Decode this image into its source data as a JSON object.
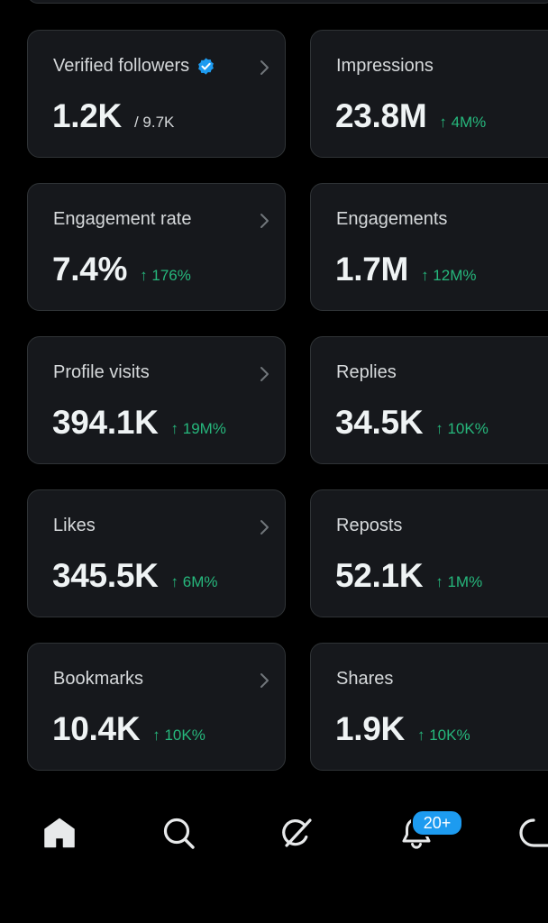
{
  "cards": [
    {
      "label": "Verified followers",
      "value": "1.2K",
      "total": "/ 9.7K",
      "delta": "",
      "verified": true,
      "chevron": true
    },
    {
      "label": "Impressions",
      "value": "23.8M",
      "delta": "↑ 4M%",
      "chevron": false
    },
    {
      "label": "Engagement rate",
      "value": "7.4%",
      "delta": "↑ 176%",
      "chevron": true
    },
    {
      "label": "Engagements",
      "value": "1.7M",
      "delta": "↑ 12M%",
      "chevron": false
    },
    {
      "label": "Profile visits",
      "value": "394.1K",
      "delta": "↑ 19M%",
      "chevron": true
    },
    {
      "label": "Replies",
      "value": "34.5K",
      "delta": "↑ 10K%",
      "chevron": false
    },
    {
      "label": "Likes",
      "value": "345.5K",
      "delta": "↑ 6M%",
      "chevron": true
    },
    {
      "label": "Reposts",
      "value": "52.1K",
      "delta": "↑ 1M%",
      "chevron": false
    },
    {
      "label": "Bookmarks",
      "value": "10.4K",
      "delta": "↑ 10K%",
      "chevron": true
    },
    {
      "label": "Shares",
      "value": "1.9K",
      "delta": "↑ 10K%",
      "chevron": false
    }
  ],
  "nav": {
    "items": [
      {
        "name": "home-icon"
      },
      {
        "name": "search-icon"
      },
      {
        "name": "grok-icon"
      },
      {
        "name": "notifications-icon"
      },
      {
        "name": "messages-icon"
      }
    ],
    "notification_badge": "20+"
  },
  "colors": {
    "background": "#000000",
    "card": "#16181c",
    "border": "#2f3336",
    "positive": "#26b77c",
    "accent": "#1d9bf0"
  }
}
